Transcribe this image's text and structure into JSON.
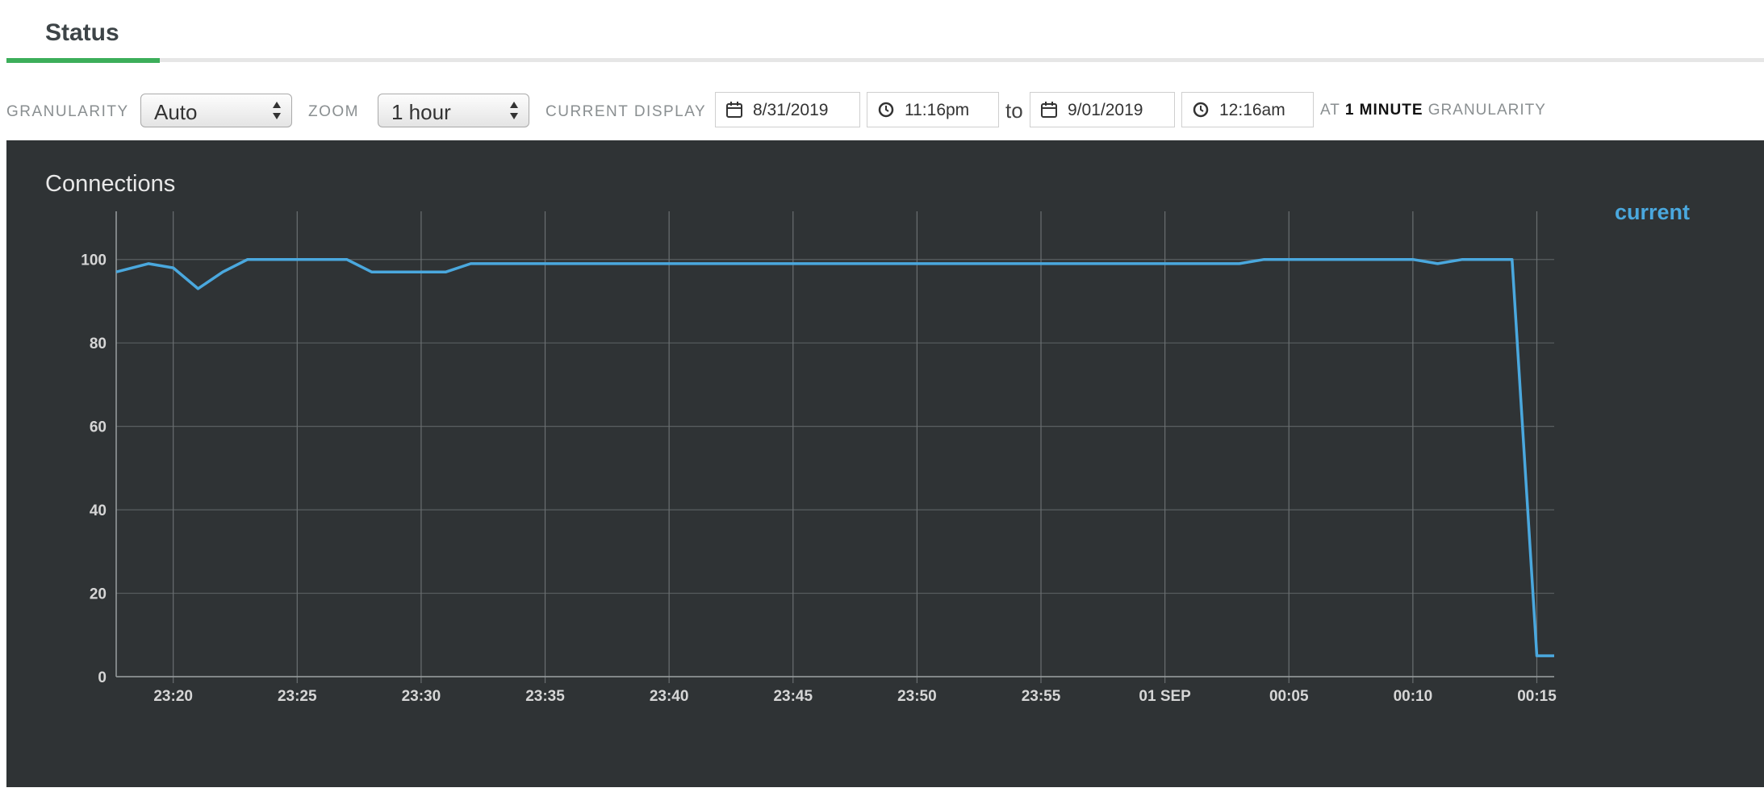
{
  "tabs": [
    {
      "label": "Status",
      "active": true
    }
  ],
  "controls": {
    "granularity_label": "GRANULARITY",
    "granularity_value": "Auto",
    "zoom_label": "ZOOM",
    "zoom_value": "1 hour",
    "current_display_label": "CURRENT DISPLAY",
    "start_date": "8/31/2019",
    "start_time": "11:16pm",
    "to_text": "to",
    "end_date": "9/01/2019",
    "end_time": "12:16am",
    "granularity_note_prefix": "AT",
    "granularity_note_value": "1 MINUTE",
    "granularity_note_suffix": "GRANULARITY"
  },
  "colors": {
    "accent_tab": "#3cae5a",
    "series": "#4aa8de",
    "panel_bg": "#2f3335"
  },
  "chart_data": {
    "type": "line",
    "title": "Connections",
    "xlabel": "",
    "ylabel": "",
    "x_ticks": [
      "23:20",
      "23:25",
      "23:30",
      "23:35",
      "23:40",
      "23:45",
      "23:50",
      "23:55",
      "01 SEP",
      "00:05",
      "00:10",
      "00:15"
    ],
    "y_ticks": [
      0,
      20,
      40,
      60,
      80,
      100
    ],
    "xlim_minutes": [
      -2.3,
      55.7
    ],
    "ylim": [
      0,
      110
    ],
    "grid": true,
    "legend_position": "top-right",
    "series": [
      {
        "name": "current",
        "x_minutes": [
          -2.3,
          -1,
          0,
          1,
          2,
          3,
          5,
          7,
          8,
          10,
          11,
          12,
          14,
          20,
          30,
          40,
          43,
          44,
          45,
          50,
          51,
          52,
          53,
          54,
          55,
          55.7
        ],
        "values": [
          97,
          99,
          98,
          93,
          97,
          100,
          100,
          100,
          97,
          97,
          97,
          99,
          99,
          99,
          99,
          99,
          99,
          100,
          100,
          100,
          99,
          100,
          100,
          100,
          5,
          5
        ]
      }
    ]
  }
}
